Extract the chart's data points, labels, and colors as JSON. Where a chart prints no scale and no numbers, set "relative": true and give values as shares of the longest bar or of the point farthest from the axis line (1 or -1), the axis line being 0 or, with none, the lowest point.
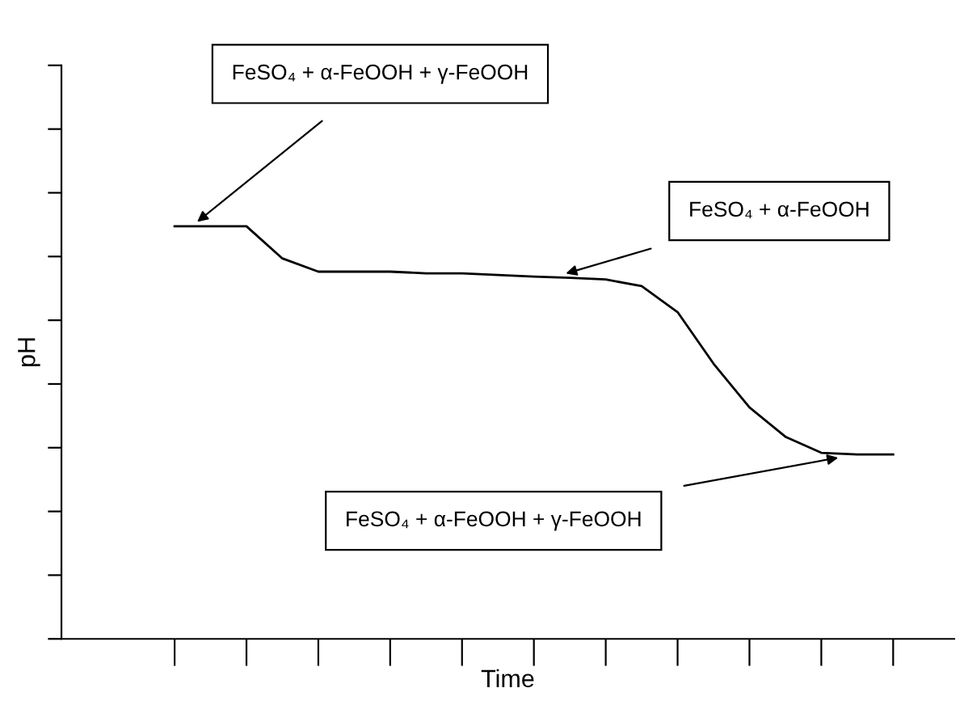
{
  "chart_data": {
    "type": "line",
    "relative": true,
    "xlabel": "Time",
    "ylabel": "pH",
    "categories": [
      null,
      null,
      null,
      null,
      null,
      null,
      null,
      null,
      null,
      null,
      null,
      null,
      null,
      null,
      null,
      null,
      null,
      null,
      null,
      null,
      null
    ],
    "series": [
      {
        "color": "#000000",
        "values": [
          1,
          1,
          1,
          0.922,
          0.89,
          0.89,
          0.89,
          0.886,
          0.886,
          0.882,
          0.878,
          0.875,
          0.871,
          0.855,
          0.792,
          0.667,
          0.561,
          0.49,
          0.451,
          0.447,
          0.447
        ]
      }
    ],
    "annotations": [
      "FeSO₄ + α-FeOOH + γ-FeOOH",
      "FeSO₄ + α-FeOOH",
      "FeSO₄ + α-FeOOH + γ-FeOOH"
    ],
    "grid": false,
    "legend": false,
    "marker": "none",
    "line_style": "solid"
  }
}
